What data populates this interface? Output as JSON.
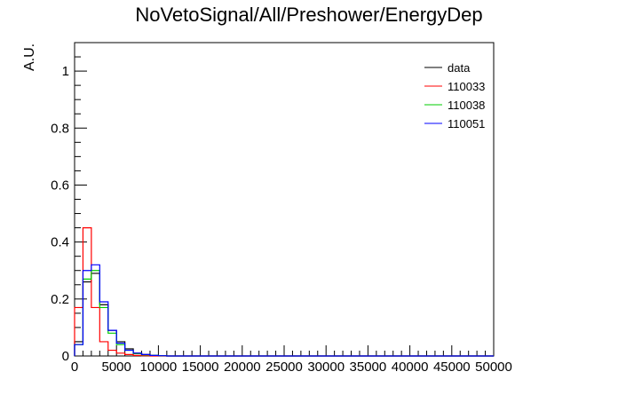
{
  "chart_data": {
    "type": "histogram",
    "title": "NoVetoSignal/All/Preshower/EnergyDep",
    "xlabel": "",
    "ylabel": "A.U.",
    "xlim": [
      0,
      50000
    ],
    "ylim": [
      0,
      1.1
    ],
    "bin_width": 1000,
    "x_ticks": [
      0,
      5000,
      10000,
      15000,
      20000,
      25000,
      30000,
      35000,
      40000,
      45000,
      50000
    ],
    "y_ticks": [
      0,
      0.2,
      0.4,
      0.6,
      0.8,
      1
    ],
    "grid": false,
    "legend_position": "top-right",
    "series": [
      {
        "name": "data",
        "color": "#000000",
        "values": [
          0.05,
          0.26,
          0.29,
          0.18,
          0.09,
          0.05,
          0.025,
          0.01,
          0.005,
          0.002,
          0.001
        ]
      },
      {
        "name": "110033",
        "color": "#ff0000",
        "values": [
          0.17,
          0.45,
          0.17,
          0.05,
          0.02,
          0.01,
          0.005,
          0.002,
          0.001,
          0.0,
          0.0
        ]
      },
      {
        "name": "110038",
        "color": "#00cc00",
        "values": [
          0.04,
          0.27,
          0.3,
          0.17,
          0.08,
          0.04,
          0.02,
          0.008,
          0.004,
          0.002,
          0.001
        ]
      },
      {
        "name": "110051",
        "color": "#0000ff",
        "values": [
          0.04,
          0.3,
          0.32,
          0.19,
          0.09,
          0.045,
          0.02,
          0.01,
          0.005,
          0.002,
          0.001
        ]
      }
    ]
  }
}
